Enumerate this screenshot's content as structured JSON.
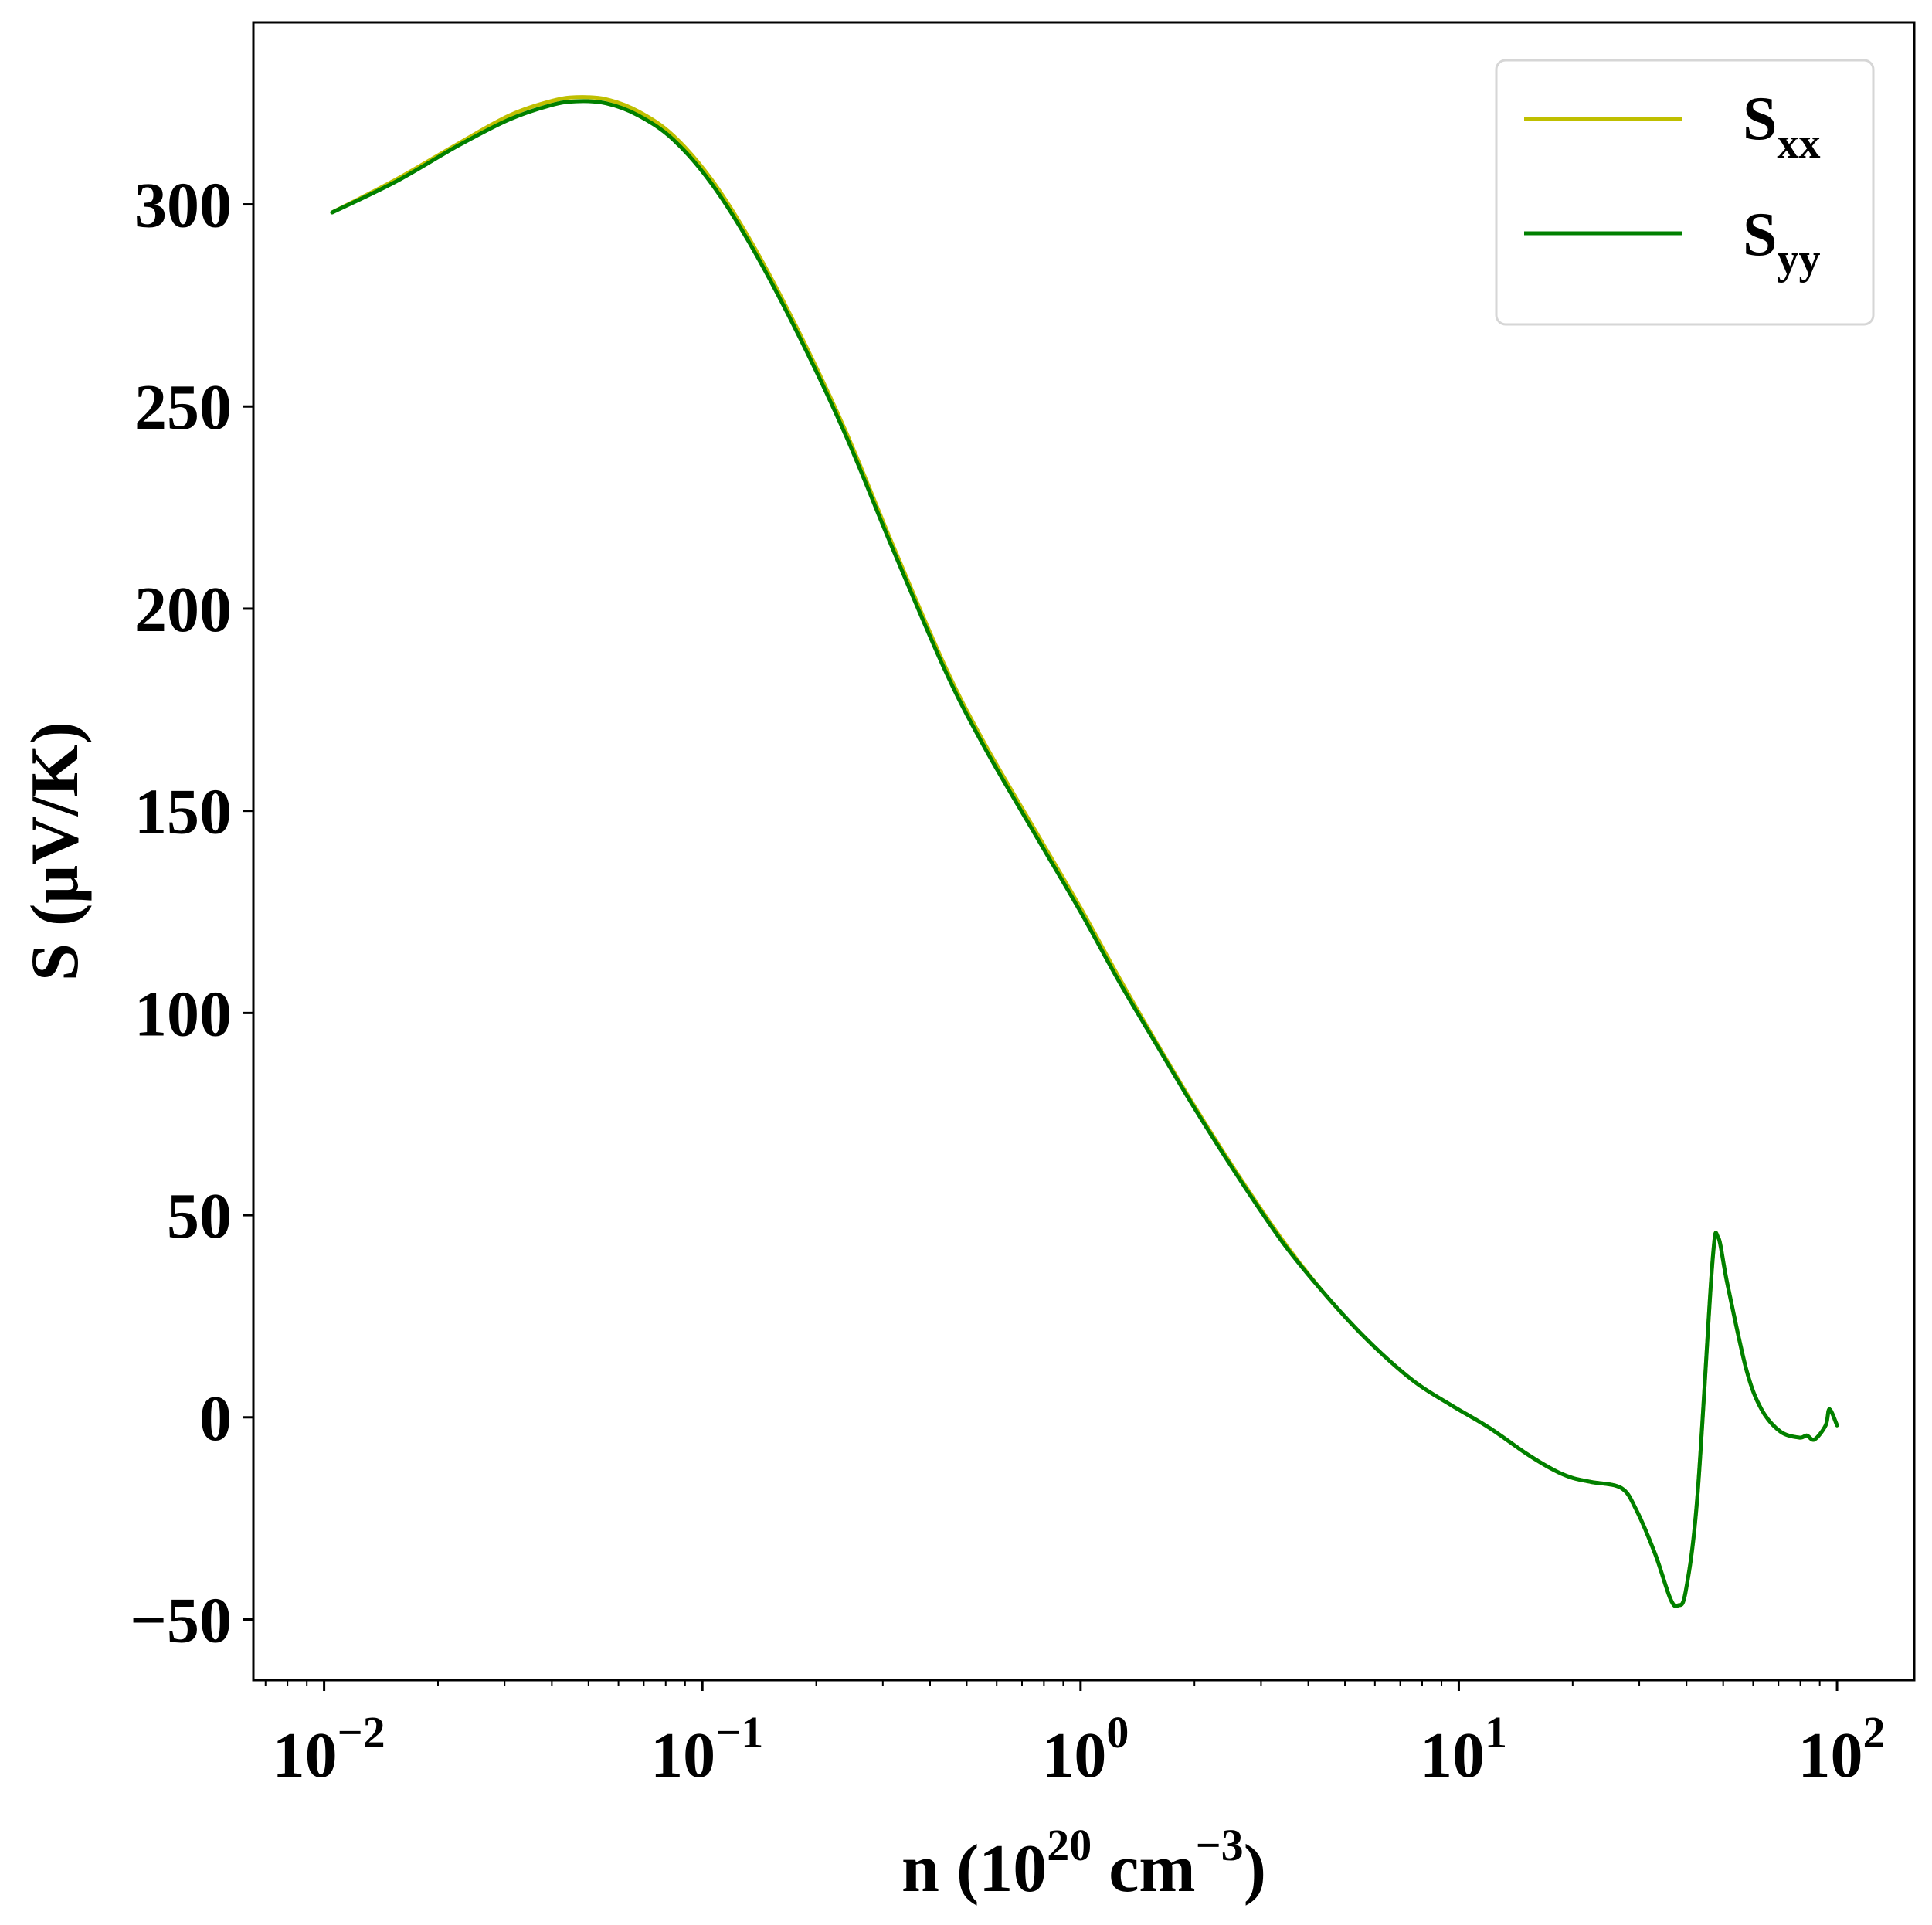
{
  "chart_data": {
    "type": "line",
    "title": "",
    "xlabel": {
      "base": "n (10",
      "exp1": "20",
      "mid": " cm",
      "exp2": "−3",
      "end": ")"
    },
    "ylabel": "S (μV/K)",
    "x_scale": "log",
    "xlim": [
      0.0065,
      160
    ],
    "ylim": [
      -65,
      345
    ],
    "x_ticks": [
      {
        "value": 0.01,
        "base": "10",
        "exp": "−2"
      },
      {
        "value": 0.1,
        "base": "10",
        "exp": "−1"
      },
      {
        "value": 1,
        "base": "10",
        "exp": "0"
      },
      {
        "value": 10,
        "base": "10",
        "exp": "1"
      },
      {
        "value": 100,
        "base": "10",
        "exp": "2"
      }
    ],
    "y_ticks": [
      {
        "value": -50,
        "label": "−50"
      },
      {
        "value": 0,
        "label": "0"
      },
      {
        "value": 50,
        "label": "50"
      },
      {
        "value": 100,
        "label": "100"
      },
      {
        "value": 150,
        "label": "150"
      },
      {
        "value": 200,
        "label": "200"
      },
      {
        "value": 250,
        "label": "250"
      },
      {
        "value": 300,
        "label": "300"
      }
    ],
    "grid": false,
    "legend": {
      "placement": "top-right",
      "entries": [
        {
          "base": "S",
          "sub": "xx",
          "color": "#bfbf00"
        },
        {
          "base": "S",
          "sub": "yy",
          "color": "#008000"
        }
      ]
    },
    "series": [
      {
        "color": "#bfbf00",
        "x": [
          0.0105,
          0.0154,
          0.0226,
          0.0309,
          0.0397,
          0.0464,
          0.0556,
          0.0677,
          0.0838,
          0.106,
          0.136,
          0.181,
          0.239,
          0.318,
          0.437,
          0.555,
          0.76,
          1.0,
          1.26,
          1.58,
          2.0,
          2.65,
          3.47,
          4.47,
          5.75,
          7.59,
          9.55,
          12.0,
          15.1,
          17.8,
          20.0,
          22.4,
          26.9,
          29.5,
          33.1,
          36.3,
          38.0,
          39.8,
          42.7,
          46.8,
          48.5,
          51.3,
          57.5,
          63.1,
          70.8,
          79.4,
          83.2,
          87.1,
          93.3,
          95.5,
          100.0
        ],
        "y": [
          298,
          306,
          315,
          322,
          325.5,
          326.5,
          326,
          323,
          317,
          306,
          290,
          268,
          244,
          216,
          186,
          167,
          145,
          126,
          109,
          93,
          77,
          59,
          43,
          30,
          19,
          9,
          3,
          -2.5,
          -9,
          -13,
          -15,
          -16,
          -17.5,
          -23,
          -34,
          -45,
          -46.5,
          -43,
          -20,
          38,
          44.5,
          33,
          12,
          2,
          -3.5,
          -5,
          -4.5,
          -5.5,
          -2,
          2,
          -2
        ]
      },
      {
        "color": "#008000",
        "x": [
          0.0105,
          0.0154,
          0.0226,
          0.0309,
          0.0397,
          0.0464,
          0.0556,
          0.0677,
          0.0838,
          0.106,
          0.136,
          0.181,
          0.239,
          0.318,
          0.437,
          0.555,
          0.76,
          1.0,
          1.26,
          1.58,
          2.0,
          2.65,
          3.47,
          4.47,
          5.75,
          7.59,
          9.55,
          12.0,
          15.1,
          17.8,
          20.0,
          22.4,
          26.9,
          29.5,
          33.1,
          36.3,
          38.0,
          39.8,
          42.7,
          46.8,
          48.5,
          51.3,
          57.5,
          63.1,
          70.8,
          79.4,
          83.2,
          87.1,
          93.3,
          95.5,
          100.0
        ],
        "y": [
          298,
          305.5,
          314.5,
          321,
          324.5,
          325.5,
          325,
          322,
          316,
          305,
          289,
          267,
          243,
          215,
          185,
          166,
          144,
          125,
          108,
          92.5,
          76.5,
          58.5,
          42.5,
          30,
          19,
          9,
          3,
          -2.5,
          -9,
          -13,
          -15,
          -16,
          -17.5,
          -23,
          -34,
          -45,
          -46.5,
          -43,
          -20,
          38,
          44.5,
          33,
          12,
          2,
          -3.5,
          -5,
          -4.5,
          -5.5,
          -2,
          2,
          -2
        ]
      }
    ]
  }
}
